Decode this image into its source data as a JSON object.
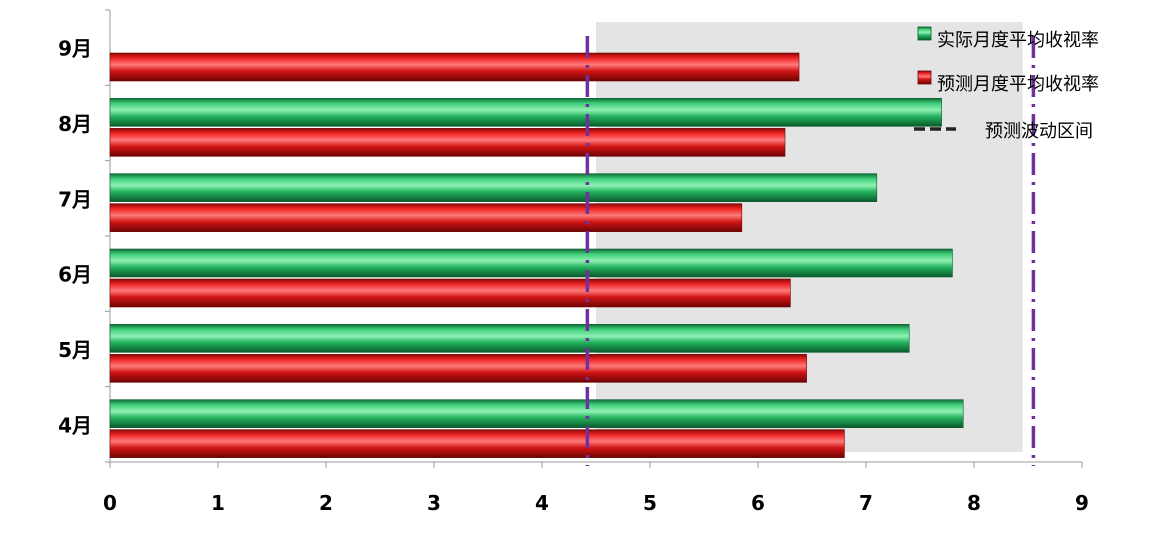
{
  "chart_data": {
    "type": "bar",
    "orientation": "horizontal",
    "categories": [
      "4月",
      "5月",
      "6月",
      "7月",
      "8月",
      "9月"
    ],
    "series": [
      {
        "name": "实际月度平均收视率",
        "color": "#1aa653",
        "values": [
          7.9,
          7.4,
          7.8,
          7.1,
          7.7,
          null
        ]
      },
      {
        "name": "预测月度平均收视率",
        "color": "#d81515",
        "values": [
          6.8,
          6.45,
          6.3,
          5.85,
          6.25,
          6.38
        ]
      }
    ],
    "xlim": [
      0,
      9
    ],
    "xticks": [
      "0",
      "1",
      "2",
      "3",
      "4",
      "5",
      "6",
      "7",
      "8",
      "9"
    ],
    "band": {
      "name": "预测波动区间",
      "from": 4.5,
      "to": 8.45,
      "color": "#e4e4e4"
    },
    "reference_lines": [
      {
        "x": 4.42,
        "color": "#7030a0"
      },
      {
        "x": 8.55,
        "color": "#7030a0"
      }
    ],
    "legend": {
      "position": "top-right",
      "entries": [
        "实际月度平均收视率",
        "预测月度平均收视率",
        "预测波动区间"
      ]
    }
  }
}
